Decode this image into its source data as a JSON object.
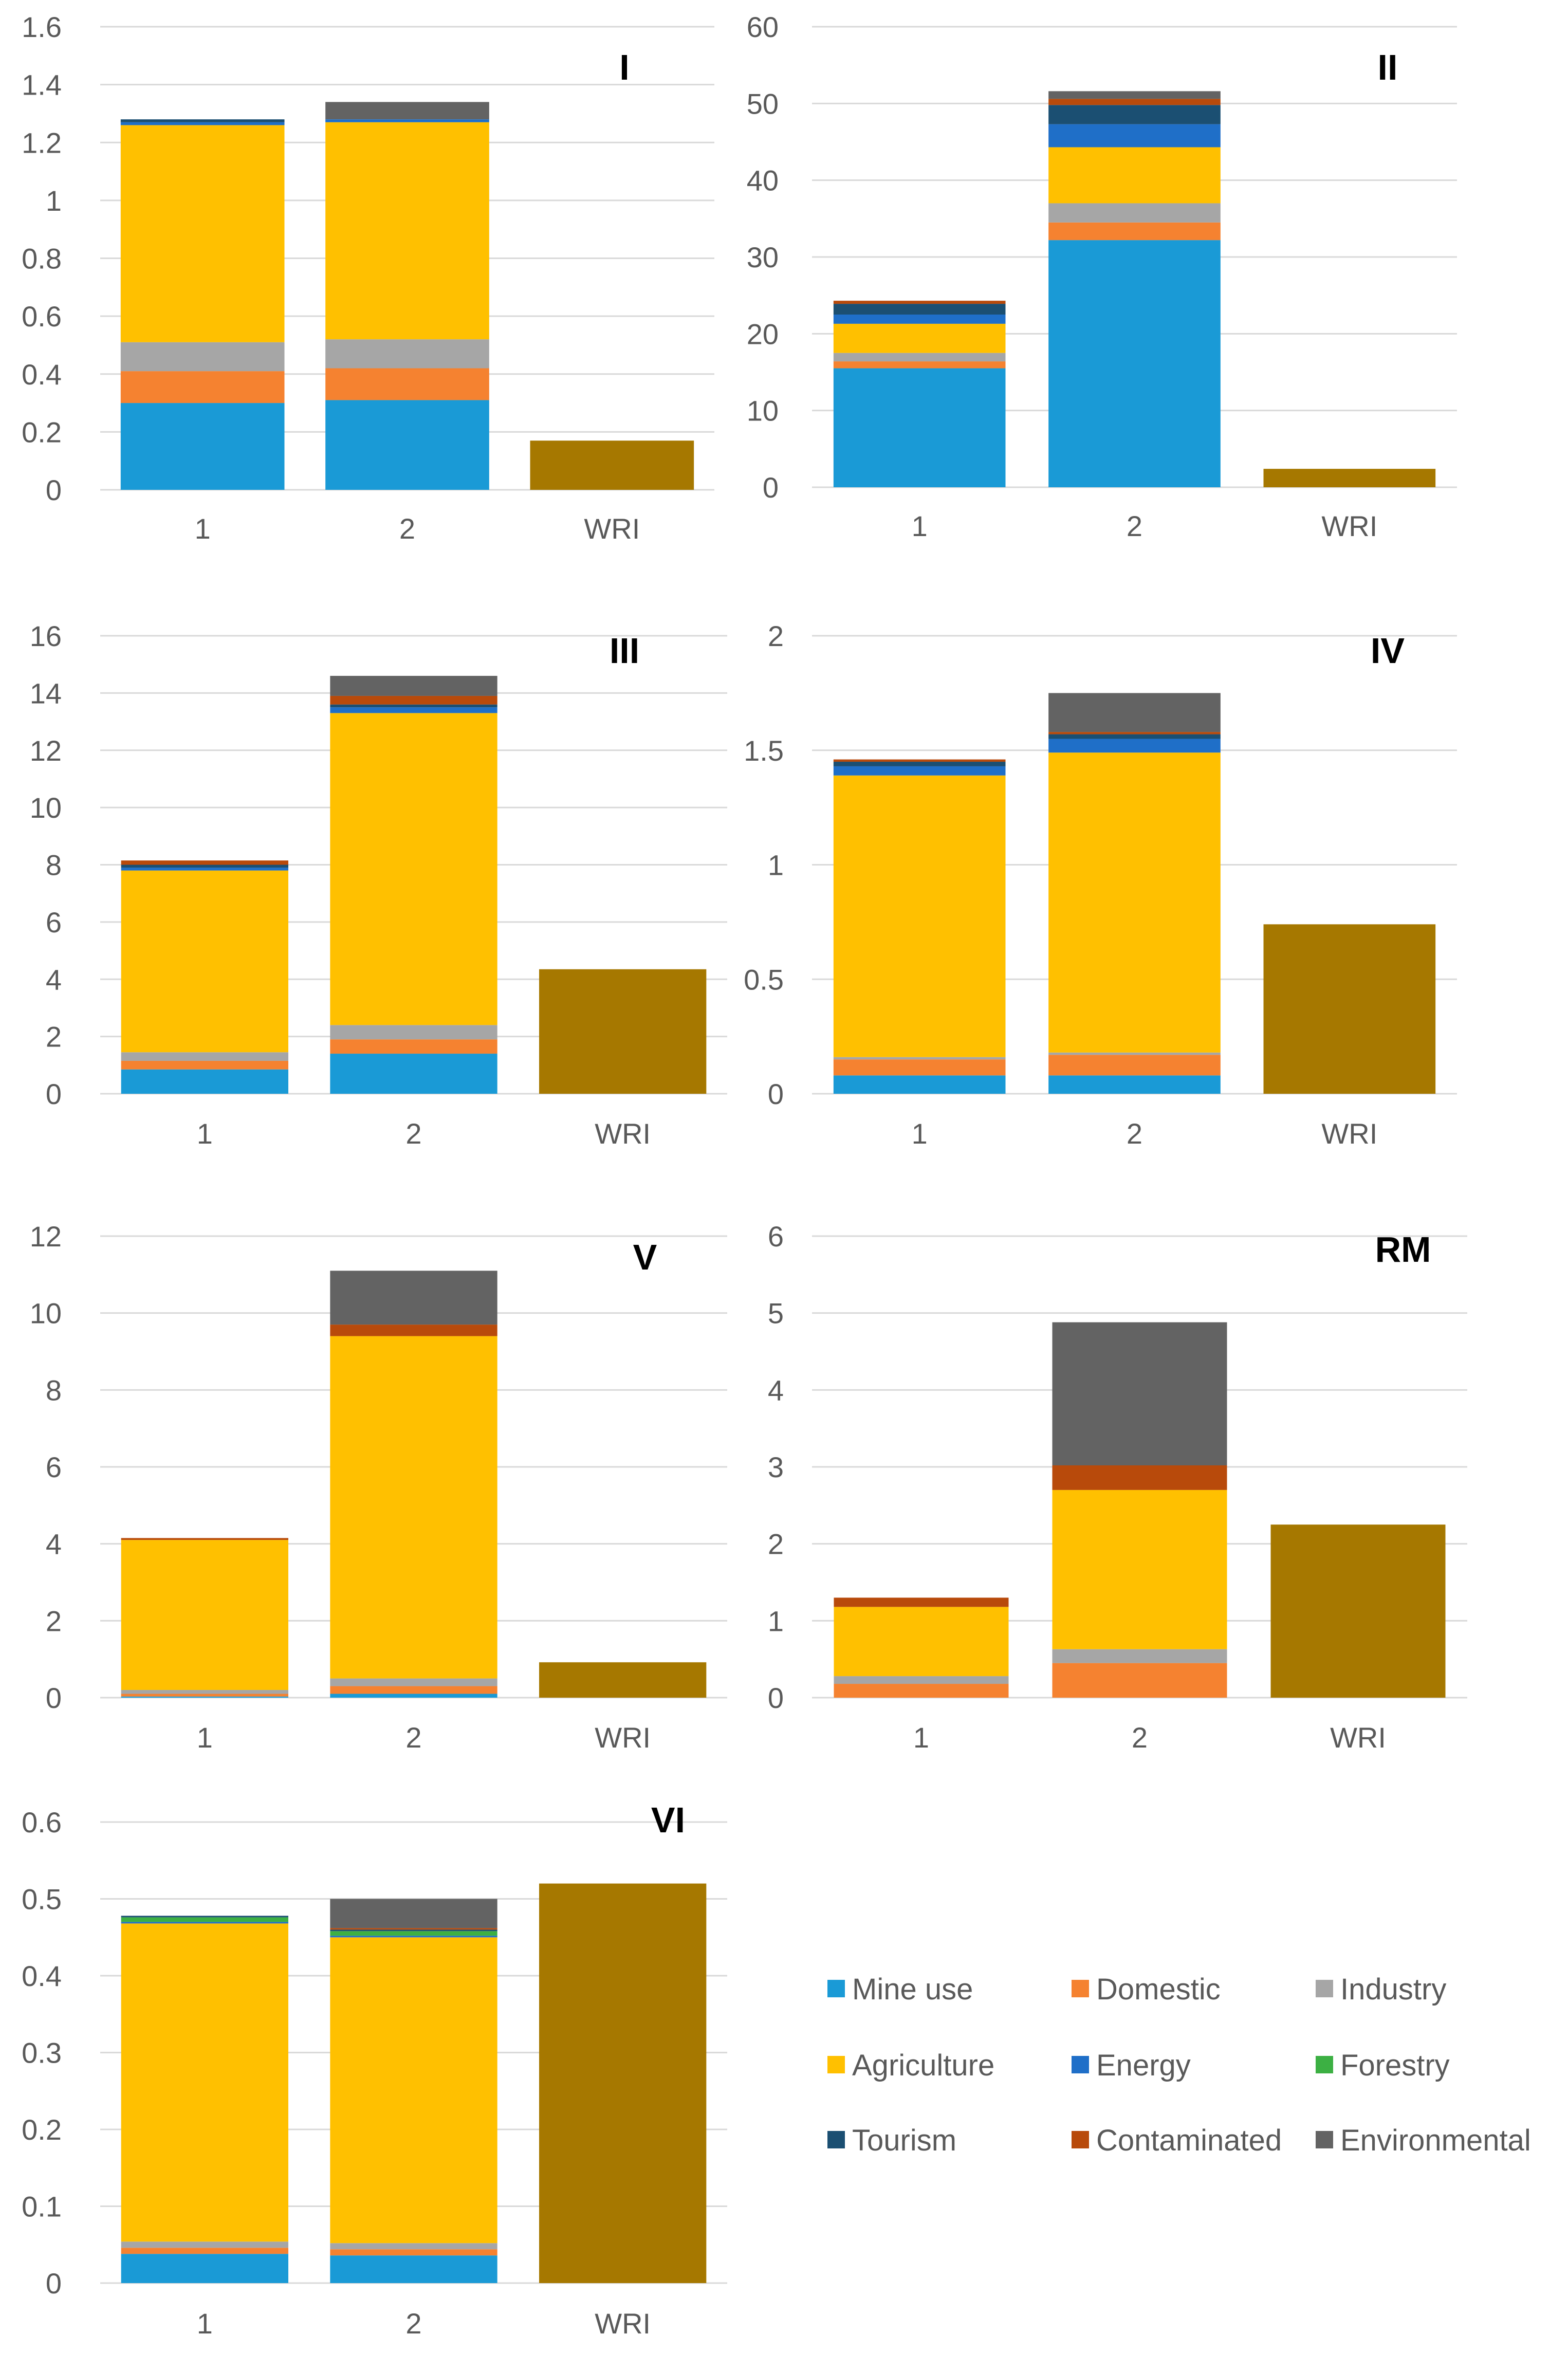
{
  "legend": {
    "columns": 3,
    "items": [
      {
        "name": "Mine use",
        "color": "#1a9ad6"
      },
      {
        "name": "Domestic",
        "color": "#f58230"
      },
      {
        "name": "Industry",
        "color": "#a6a6a6"
      },
      {
        "name": "Agriculture",
        "color": "#ffc000"
      },
      {
        "name": "Energy",
        "color": "#1f6fc8"
      },
      {
        "name": "Forestry",
        "color": "#3cb043"
      },
      {
        "name": "Tourism",
        "color": "#1b4f72"
      },
      {
        "name": "Contaminated",
        "color": "#b84a0b"
      },
      {
        "name": "Environmental",
        "color": "#636363"
      }
    ]
  },
  "wri_color": "#a67800",
  "chart_data": [
    {
      "type": "bar",
      "stacked": true,
      "title": "I",
      "categories": [
        "1",
        "2",
        "WRI"
      ],
      "yticks": [
        "0",
        "0.2",
        "0.4",
        "0.6",
        "0.8",
        "1",
        "1.2",
        "1.4",
        "1.6"
      ],
      "ylim": [
        0,
        1.6
      ],
      "series": [
        {
          "name": "Mine use",
          "values": [
            0.3,
            0.31,
            0
          ]
        },
        {
          "name": "Domestic",
          "values": [
            0.11,
            0.11,
            0
          ]
        },
        {
          "name": "Industry",
          "values": [
            0.1,
            0.1,
            0
          ]
        },
        {
          "name": "Agriculture",
          "values": [
            0.75,
            0.75,
            0
          ]
        },
        {
          "name": "Energy",
          "values": [
            0.01,
            0.01,
            0
          ]
        },
        {
          "name": "Forestry",
          "values": [
            0,
            0,
            0
          ]
        },
        {
          "name": "Tourism",
          "values": [
            0.01,
            0,
            0
          ]
        },
        {
          "name": "Contaminated",
          "values": [
            0,
            0,
            0
          ]
        },
        {
          "name": "Environmental",
          "values": [
            0,
            0.06,
            0
          ]
        },
        {
          "name": "WRI",
          "values": [
            0,
            0,
            0.17
          ]
        }
      ]
    },
    {
      "type": "bar",
      "stacked": true,
      "title": "II",
      "categories": [
        "1",
        "2",
        "WRI"
      ],
      "yticks": [
        "0",
        "10",
        "20",
        "30",
        "40",
        "50",
        "60"
      ],
      "ylim": [
        0,
        60
      ],
      "series": [
        {
          "name": "Mine use",
          "values": [
            15.5,
            32.2,
            0
          ]
        },
        {
          "name": "Domestic",
          "values": [
            0.9,
            2.3,
            0
          ]
        },
        {
          "name": "Industry",
          "values": [
            1.1,
            2.5,
            0
          ]
        },
        {
          "name": "Agriculture",
          "values": [
            3.8,
            7.3,
            0
          ]
        },
        {
          "name": "Energy",
          "values": [
            1.2,
            3.0,
            0
          ]
        },
        {
          "name": "Forestry",
          "values": [
            0,
            0,
            0
          ]
        },
        {
          "name": "Tourism",
          "values": [
            1.4,
            2.5,
            0
          ]
        },
        {
          "name": "Contaminated",
          "values": [
            0.4,
            0.8,
            0
          ]
        },
        {
          "name": "Environmental",
          "values": [
            0,
            1.0,
            0
          ]
        },
        {
          "name": "WRI",
          "values": [
            0,
            0,
            2.4
          ]
        }
      ]
    },
    {
      "type": "bar",
      "stacked": true,
      "title": "III",
      "categories": [
        "1",
        "2",
        "WRI"
      ],
      "yticks": [
        "0",
        "2",
        "4",
        "6",
        "8",
        "10",
        "12",
        "14",
        "16"
      ],
      "ylim": [
        0,
        16
      ],
      "series": [
        {
          "name": "Mine use",
          "values": [
            0.85,
            1.4,
            0
          ]
        },
        {
          "name": "Domestic",
          "values": [
            0.3,
            0.5,
            0
          ]
        },
        {
          "name": "Industry",
          "values": [
            0.3,
            0.5,
            0
          ]
        },
        {
          "name": "Agriculture",
          "values": [
            6.35,
            10.9,
            0
          ]
        },
        {
          "name": "Energy",
          "values": [
            0.1,
            0.2,
            0
          ]
        },
        {
          "name": "Forestry",
          "values": [
            0,
            0,
            0
          ]
        },
        {
          "name": "Tourism",
          "values": [
            0.1,
            0.1,
            0
          ]
        },
        {
          "name": "Contaminated",
          "values": [
            0.15,
            0.3,
            0
          ]
        },
        {
          "name": "Environmental",
          "values": [
            0,
            0.7,
            0
          ]
        },
        {
          "name": "WRI",
          "values": [
            0,
            0,
            4.35
          ]
        }
      ]
    },
    {
      "type": "bar",
      "stacked": true,
      "title": "IV",
      "categories": [
        "1",
        "2",
        "WRI"
      ],
      "yticks": [
        "0",
        "0.5",
        "1",
        "1.5",
        "2"
      ],
      "ylim": [
        0,
        2
      ],
      "series": [
        {
          "name": "Mine use",
          "values": [
            0.08,
            0.08,
            0
          ]
        },
        {
          "name": "Domestic",
          "values": [
            0.07,
            0.09,
            0
          ]
        },
        {
          "name": "Industry",
          "values": [
            0.01,
            0.01,
            0
          ]
        },
        {
          "name": "Agriculture",
          "values": [
            1.23,
            1.31,
            0
          ]
        },
        {
          "name": "Energy",
          "values": [
            0.04,
            0.06,
            0
          ]
        },
        {
          "name": "Forestry",
          "values": [
            0,
            0,
            0
          ]
        },
        {
          "name": "Tourism",
          "values": [
            0.02,
            0.02,
            0
          ]
        },
        {
          "name": "Contaminated",
          "values": [
            0.01,
            0.01,
            0
          ]
        },
        {
          "name": "Environmental",
          "values": [
            0,
            0.17,
            0
          ]
        },
        {
          "name": "WRI",
          "values": [
            0,
            0,
            0.74
          ]
        }
      ]
    },
    {
      "type": "bar",
      "stacked": true,
      "title": "V",
      "categories": [
        "1",
        "2",
        "WRI"
      ],
      "yticks": [
        "0",
        "2",
        "4",
        "6",
        "8",
        "10",
        "12"
      ],
      "ylim": [
        0,
        12
      ],
      "series": [
        {
          "name": "Mine use",
          "values": [
            0.03,
            0.1,
            0
          ]
        },
        {
          "name": "Domestic",
          "values": [
            0.07,
            0.2,
            0
          ]
        },
        {
          "name": "Industry",
          "values": [
            0.1,
            0.2,
            0
          ]
        },
        {
          "name": "Agriculture",
          "values": [
            3.9,
            8.9,
            0
          ]
        },
        {
          "name": "Energy",
          "values": [
            0,
            0,
            0
          ]
        },
        {
          "name": "Forestry",
          "values": [
            0,
            0,
            0
          ]
        },
        {
          "name": "Tourism",
          "values": [
            0,
            0,
            0
          ]
        },
        {
          "name": "Contaminated",
          "values": [
            0.05,
            0.3,
            0
          ]
        },
        {
          "name": "Environmental",
          "values": [
            0,
            1.4,
            0
          ]
        },
        {
          "name": "WRI",
          "values": [
            0,
            0,
            0.92
          ]
        }
      ]
    },
    {
      "type": "bar",
      "stacked": true,
      "title": "RM",
      "categories": [
        "1",
        "2",
        "WRI"
      ],
      "yticks": [
        "0",
        "1",
        "2",
        "3",
        "4",
        "5",
        "6"
      ],
      "ylim": [
        0,
        6
      ],
      "series": [
        {
          "name": "Mine use",
          "values": [
            0,
            0,
            0
          ]
        },
        {
          "name": "Domestic",
          "values": [
            0.18,
            0.45,
            0
          ]
        },
        {
          "name": "Industry",
          "values": [
            0.1,
            0.18,
            0
          ]
        },
        {
          "name": "Agriculture",
          "values": [
            0.9,
            2.07,
            0
          ]
        },
        {
          "name": "Energy",
          "values": [
            0,
            0,
            0
          ]
        },
        {
          "name": "Forestry",
          "values": [
            0,
            0,
            0
          ]
        },
        {
          "name": "Tourism",
          "values": [
            0,
            0,
            0
          ]
        },
        {
          "name": "Contaminated",
          "values": [
            0.12,
            0.32,
            0
          ]
        },
        {
          "name": "Environmental",
          "values": [
            0,
            1.86,
            0
          ]
        },
        {
          "name": "WRI",
          "values": [
            0,
            0,
            2.25
          ]
        }
      ]
    },
    {
      "type": "bar",
      "stacked": true,
      "title": "VI",
      "categories": [
        "1",
        "2",
        "WRI"
      ],
      "yticks": [
        "0",
        "0.1",
        "0.2",
        "0.3",
        "0.4",
        "0.5",
        "0.6"
      ],
      "ylim": [
        0,
        0.6
      ],
      "series": [
        {
          "name": "Mine use",
          "values": [
            0.038,
            0.036,
            0
          ]
        },
        {
          "name": "Domestic",
          "values": [
            0.008,
            0.008,
            0
          ]
        },
        {
          "name": "Industry",
          "values": [
            0.008,
            0.008,
            0
          ]
        },
        {
          "name": "Agriculture",
          "values": [
            0.414,
            0.398,
            0
          ]
        },
        {
          "name": "Energy",
          "values": [
            0.002,
            0.002,
            0
          ]
        },
        {
          "name": "Forestry",
          "values": [
            0.006,
            0.006,
            0
          ]
        },
        {
          "name": "Tourism",
          "values": [
            0.002,
            0.002,
            0
          ]
        },
        {
          "name": "Contaminated",
          "values": [
            0,
            0.002,
            0
          ]
        },
        {
          "name": "Environmental",
          "values": [
            0,
            0.038,
            0
          ]
        },
        {
          "name": "WRI",
          "values": [
            0,
            0,
            0.52
          ]
        }
      ]
    }
  ]
}
